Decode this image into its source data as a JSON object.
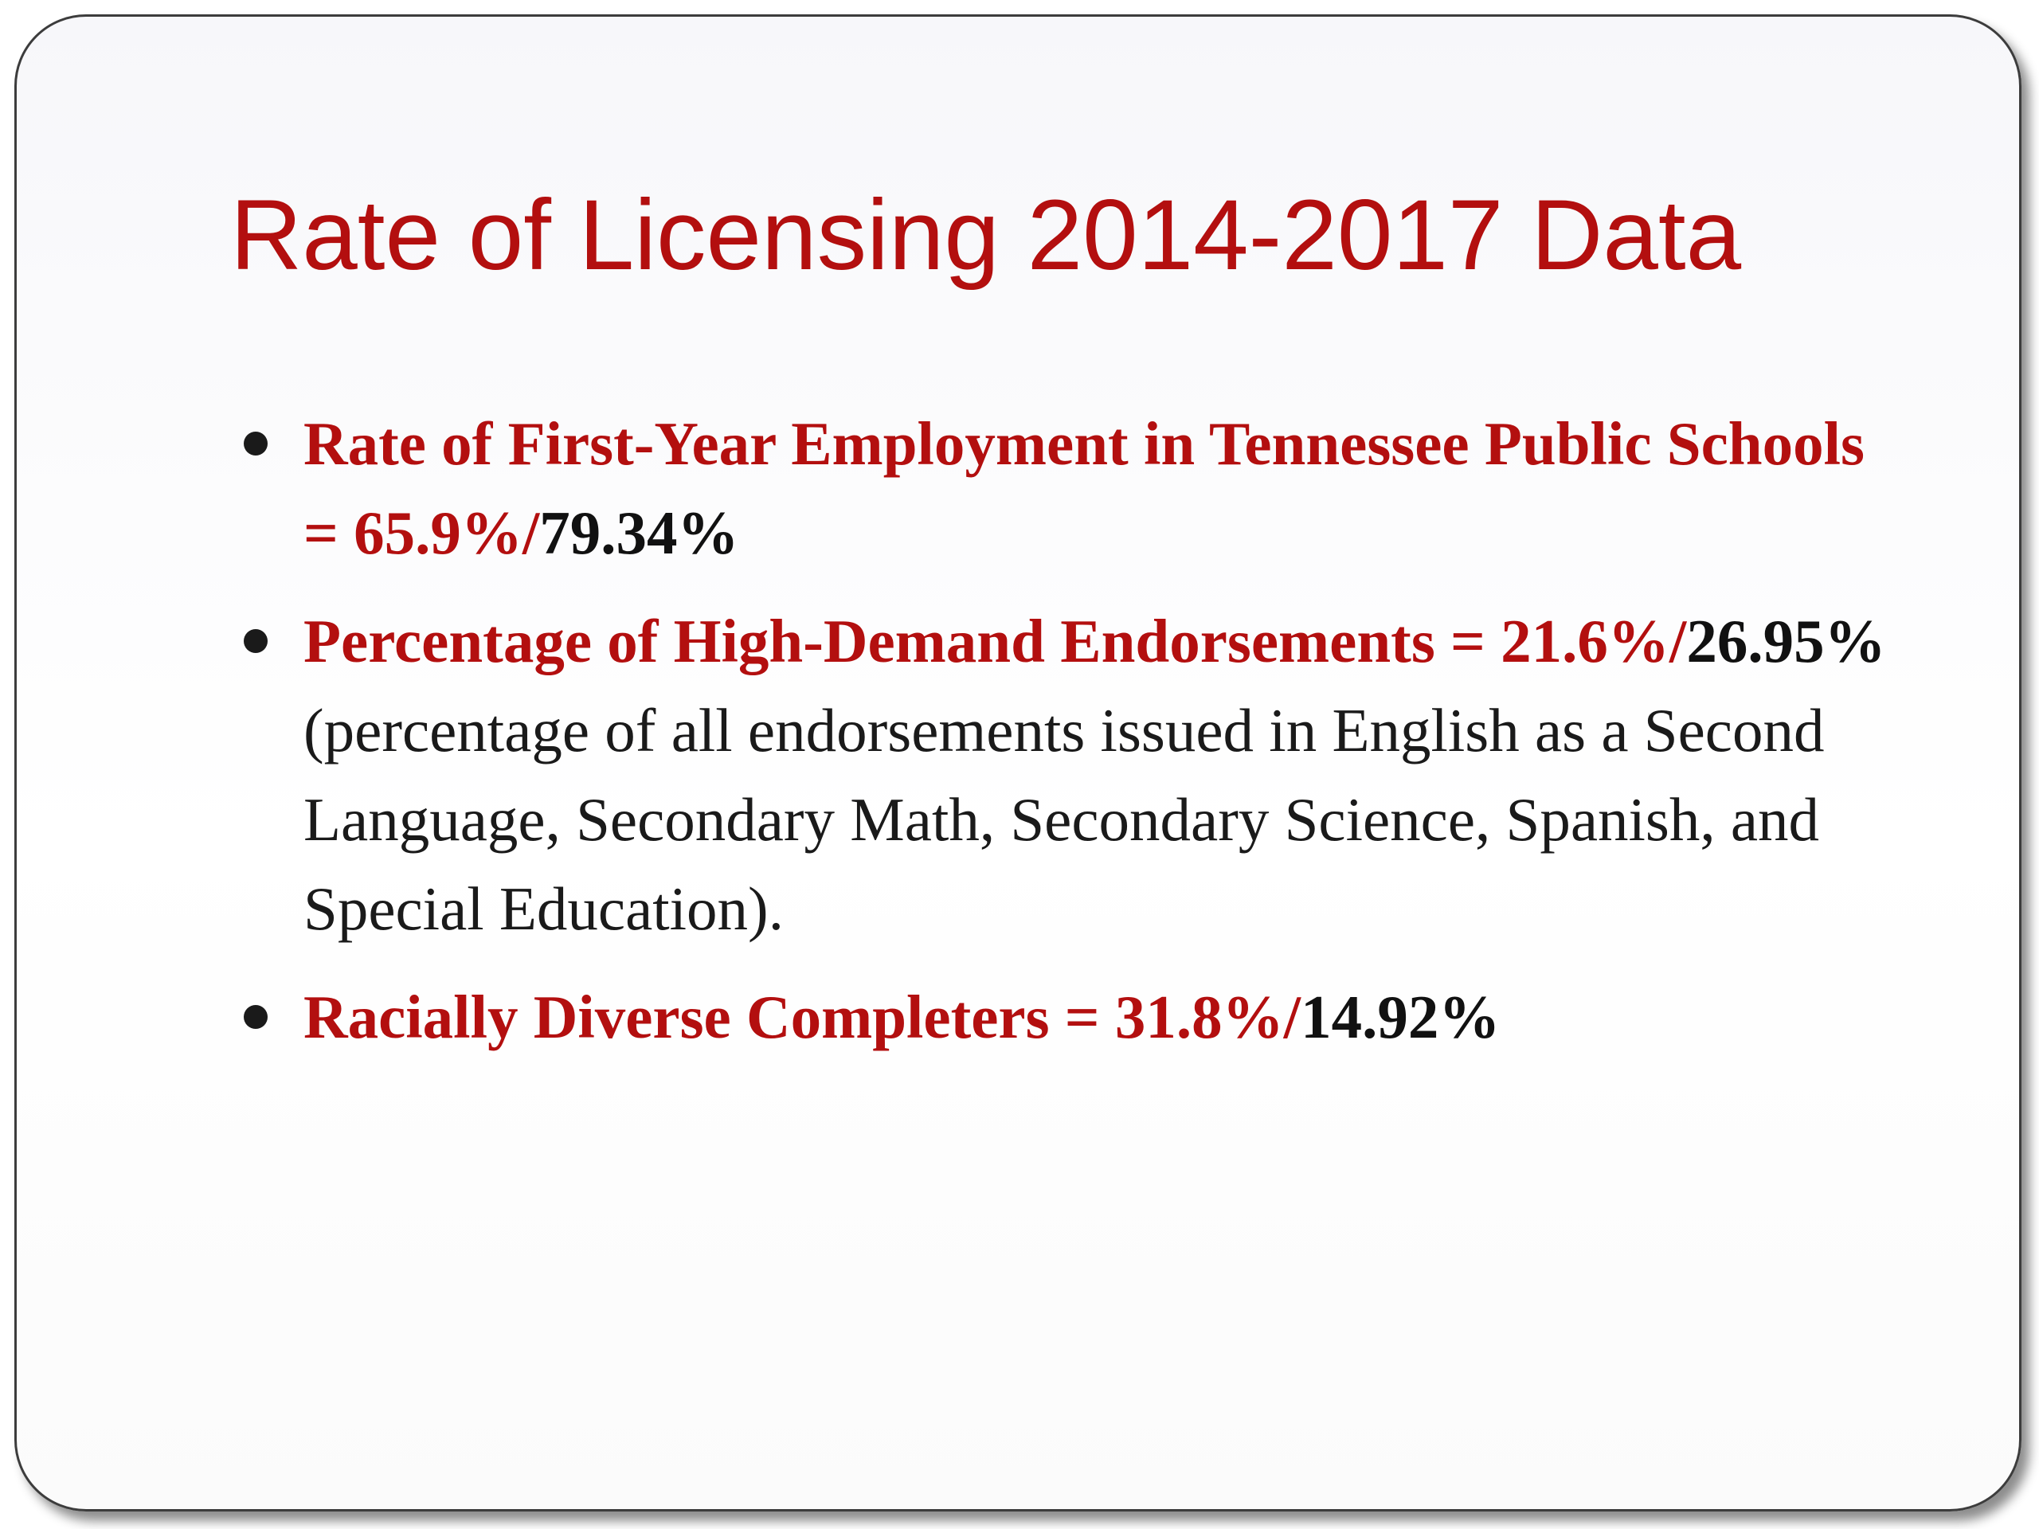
{
  "slide": {
    "title": "Rate of Licensing 2014-2017 Data",
    "bullets": [
      {
        "red_text": "Rate of First-Year Employment in Tennessee Public Schools = 65.9%/",
        "black_bold_text": "79.34%",
        "plain_text": ""
      },
      {
        "red_text": "Percentage of High-Demand Endorsements = 21.6%/",
        "black_bold_text": "26.95%",
        "plain_text": " (percentage of all endorsements issued in English as a Second Language, Secondary Math, Secondary Science, Spanish, and Special Education)."
      },
      {
        "red_text": "Racially Diverse Completers = 31.8%/",
        "black_bold_text": "14.92%",
        "plain_text": ""
      }
    ]
  },
  "colors": {
    "title": "#b30f0f",
    "highlight": "#b30f0f",
    "body_text": "#1a1a1a",
    "frame": "#3c3c3c"
  },
  "icons": {
    "bullet": "filled-circle"
  }
}
